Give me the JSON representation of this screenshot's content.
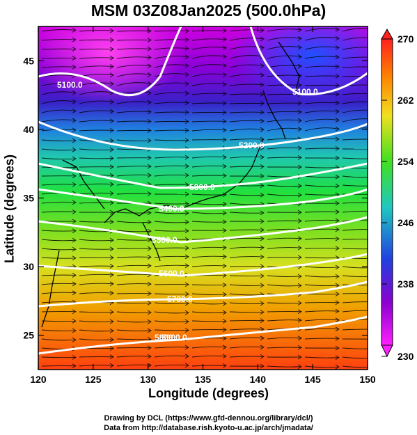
{
  "title": "MSM 03Z08Jan2025 (500.0hPa)",
  "xlabel": "Longitude (degrees)",
  "ylabel": "Latitude  (degrees)",
  "x_ticks": [
    "120",
    "125",
    "130",
    "135",
    "140",
    "145",
    "150"
  ],
  "y_ticks": [
    "25",
    "30",
    "35",
    "40",
    "45"
  ],
  "colorbar": {
    "ticks": [
      "270",
      "262",
      "254",
      "246",
      "238",
      "230"
    ],
    "min": 230,
    "max": 270
  },
  "contour_labels": [
    "5100.0",
    "5100.0",
    "5200.0",
    "5300.0",
    "5400.0",
    "5500.0",
    "5600.0",
    "5700.0",
    "5800.0",
    "5900.0"
  ],
  "credits": [
    "Drawing by DCL (https://www.gfd-dennou.org/library/dcl/)",
    "Data from http://database.rish.kyoto-u.ac.jp/arch/jmadata/"
  ],
  "chart_data": {
    "type": "heatmap",
    "title": "MSM 03Z08Jan2025 (500.0hPa)",
    "xlabel": "Longitude (degrees)",
    "ylabel": "Latitude  (degrees)",
    "xlim": [
      120,
      150
    ],
    "ylim": [
      22.5,
      47.5
    ],
    "colorbar_range": [
      230,
      270
    ],
    "contour_levels": [
      5100,
      5200,
      5300,
      5400,
      5500,
      5600,
      5700,
      5800,
      5900
    ]
  },
  "colors": {
    "low": "#ff00ff",
    "mid": "#00ff66",
    "high": "#ff3300",
    "contour": "#ffffff"
  }
}
